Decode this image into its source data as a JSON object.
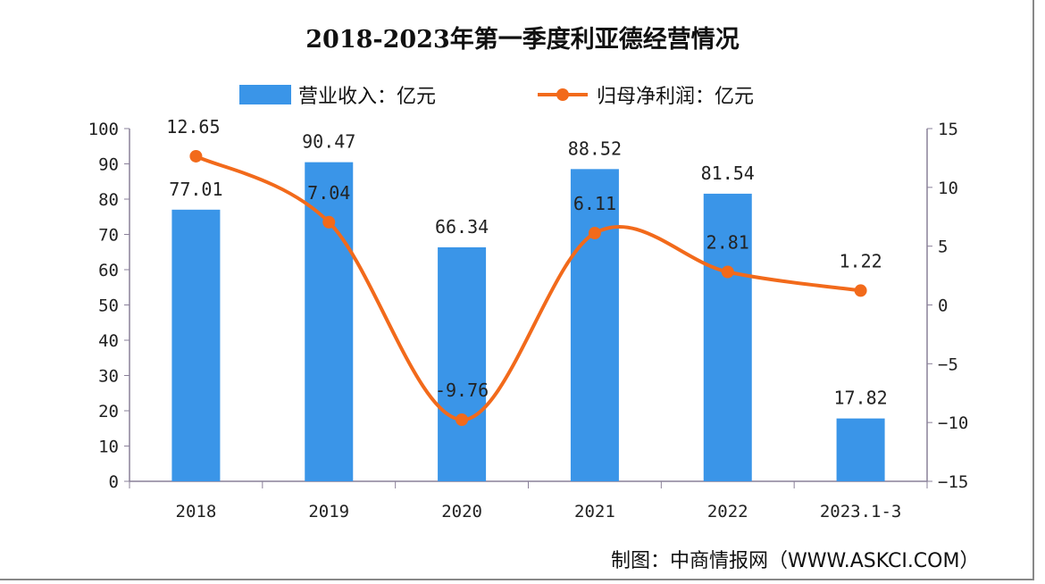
{
  "chart_data": {
    "type": "bar+line",
    "title": "2018-2023年第一季度利亚德经营情况",
    "categories": [
      "2018",
      "2019",
      "2020",
      "2021",
      "2022",
      "2023.1-3"
    ],
    "series": [
      {
        "name": "营业收入：亿元",
        "type": "bar",
        "axis": "left",
        "color": "#3a95e8",
        "values": [
          77.01,
          90.47,
          66.34,
          88.52,
          81.54,
          17.82
        ]
      },
      {
        "name": "归母净利润：亿元",
        "type": "line",
        "axis": "right",
        "color": "#f26a1b",
        "values": [
          12.65,
          7.04,
          -9.76,
          6.11,
          2.81,
          1.22
        ]
      }
    ],
    "left_axis": {
      "ylim": [
        0,
        100
      ],
      "ticks": [
        0,
        10,
        20,
        30,
        40,
        50,
        60,
        70,
        80,
        90,
        100
      ]
    },
    "right_axis": {
      "ylim": [
        -15,
        15
      ],
      "ticks": [
        -15,
        -10,
        -5,
        0,
        5,
        10,
        15
      ]
    },
    "legend": "top",
    "grid": false
  },
  "source": "制图：中商情报网（WWW.ASKCI.COM）"
}
